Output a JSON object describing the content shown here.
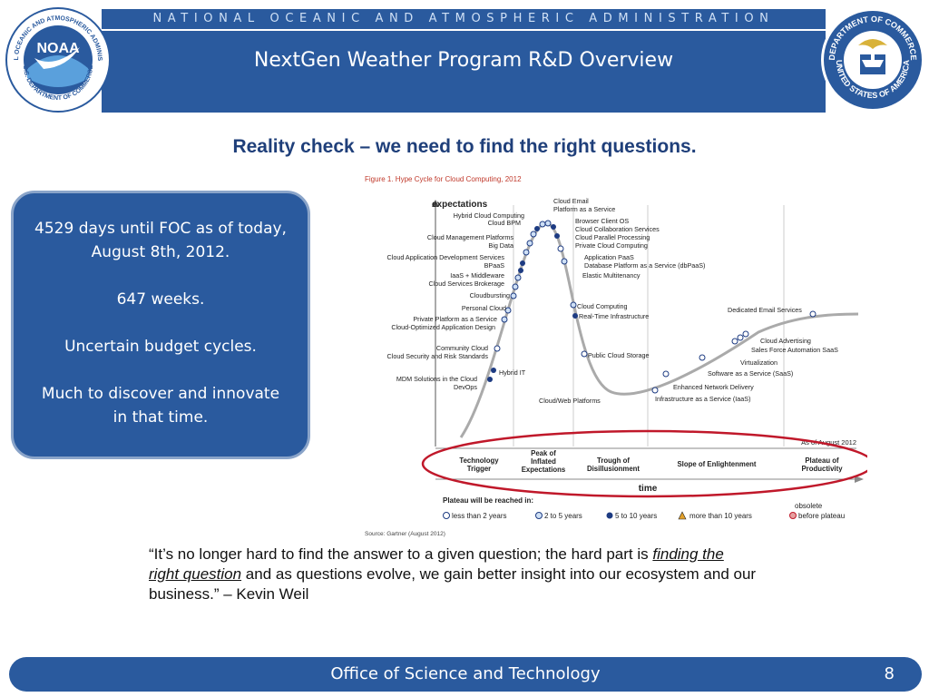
{
  "header": {
    "org_name": "NATIONAL OCEANIC AND ATMOSPHERIC ADMINISTRATION",
    "title": "NextGen Weather Program R&D Overview",
    "left_seal_text": "NATIONAL OCEANIC AND ATMOSPHERIC ADMINISTRATION",
    "left_seal_bottom": "U.S. DEPARTMENT OF COMMERCE",
    "left_seal_logo": "NOAA",
    "right_seal_text": "DEPARTMENT OF COMMERCE",
    "right_seal_bottom": "UNITED STATES OF AMERICA"
  },
  "subtitle": "Reality check – we need to find the right questions.",
  "callout": {
    "line1": "4529 days until FOC as of today, August 8th, 2012.",
    "line2": "647 weeks.",
    "line3": "Uncertain budget cycles.",
    "line4": "Much to discover and innovate in that time."
  },
  "figure": {
    "title": "Figure 1. Hype Cycle for Cloud Computing, 2012",
    "ylabel": "expectations",
    "xlabel": "time",
    "as_of": "As of August 2012",
    "source": "Source: Gartner (August 2012)",
    "phases": [
      "Technology Trigger",
      "Peak of Inflated Expectations",
      "Trough of Disillusionment",
      "Slope of Enlightenment",
      "Plateau of Productivity"
    ],
    "plateau_title": "Plateau will be reached in:",
    "legend": [
      {
        "label": "less than 2 years",
        "symbol": "open-circle"
      },
      {
        "label": "2 to 5 years",
        "symbol": "light-circle"
      },
      {
        "label": "5 to 10 years",
        "symbol": "dark-circle"
      },
      {
        "label": "more than 10 years",
        "symbol": "triangle"
      },
      {
        "label": "before plateau",
        "symbol": "x-circle"
      }
    ],
    "obsolete_label": "obsolete",
    "labels_left": [
      "Hybrid Cloud Computing",
      "Cloud BPM",
      "Cloud Management Platforms",
      "Big Data",
      "Cloud Application Development Services",
      "BPaaS",
      "IaaS + Middleware",
      "Cloud Services Brokerage",
      "Cloudbursting",
      "Personal Cloud",
      "Private Platform as a Service",
      "Cloud-Optimized Application Design",
      "Community Cloud",
      "Cloud Security and Risk Standards",
      "Hybrid IT",
      "MDM Solutions in the Cloud",
      "DevOps"
    ],
    "labels_peak_right": [
      "Cloud Email",
      "Platform as a Service",
      "Browser Client OS",
      "Cloud Collaboration Services",
      "Cloud Parallel Processing",
      "Private Cloud Computing",
      "Application PaaS",
      "Database Platform as a Service (dbPaaS)",
      "Elastic Multitenancy"
    ],
    "labels_trough": [
      "Cloud Computing",
      "Real-Time Infrastructure",
      "Public Cloud Storage",
      "Cloud/Web Platforms",
      "Enhanced Network Delivery",
      "Infrastructure as a Service (IaaS)"
    ],
    "labels_slope": [
      "Dedicated Email Services",
      "Cloud Advertising",
      "Sales Force Automation SaaS",
      "Virtualization",
      "Software as a Service (SaaS)"
    ]
  },
  "quote": {
    "part1": "“It’s no longer hard to find the answer to a given question; the hard part is ",
    "emphasis": "finding the right question",
    "part2": " and as questions evolve, we gain better insight into our ecosystem and our business.” – Kevin Weil"
  },
  "footer": {
    "text": "Office of Science and Technology",
    "page_number": "8"
  }
}
